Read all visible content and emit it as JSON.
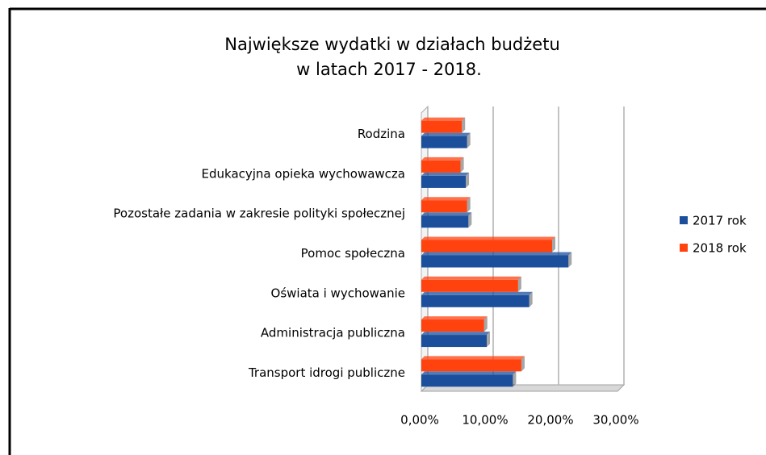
{
  "chart_data": {
    "type": "bar",
    "orientation": "horizontal",
    "title": [
      "Największe wydatki w działach budżetu",
      "w  latach 2017 - 2018."
    ],
    "categories": [
      "Rodzina",
      "Edukacyjna opieka wychowawcza",
      "Pozostałe zadania w zakresie polityki społecznej",
      "Pomoc społeczna",
      "Oświata i wychowanie",
      "Administracja publiczna",
      "Transport idrogi publiczne"
    ],
    "series": [
      {
        "name": "2017 rok",
        "color": "#1b4f9c",
        "values": [
          7.0,
          6.8,
          7.2,
          22.5,
          16.5,
          10.0,
          14.0
        ]
      },
      {
        "name": "2018 rok",
        "color": "#ff420e",
        "values": [
          6.2,
          6.0,
          7.0,
          20.0,
          14.8,
          9.6,
          15.3
        ]
      }
    ],
    "xlim": [
      0,
      30
    ],
    "xticks": [
      {
        "value": 0,
        "label": "0,00%"
      },
      {
        "value": 10,
        "label": "10,00%"
      },
      {
        "value": 20,
        "label": "20,00%"
      },
      {
        "value": 30,
        "label": "30,00%"
      }
    ],
    "grid": true,
    "legend": "right"
  }
}
